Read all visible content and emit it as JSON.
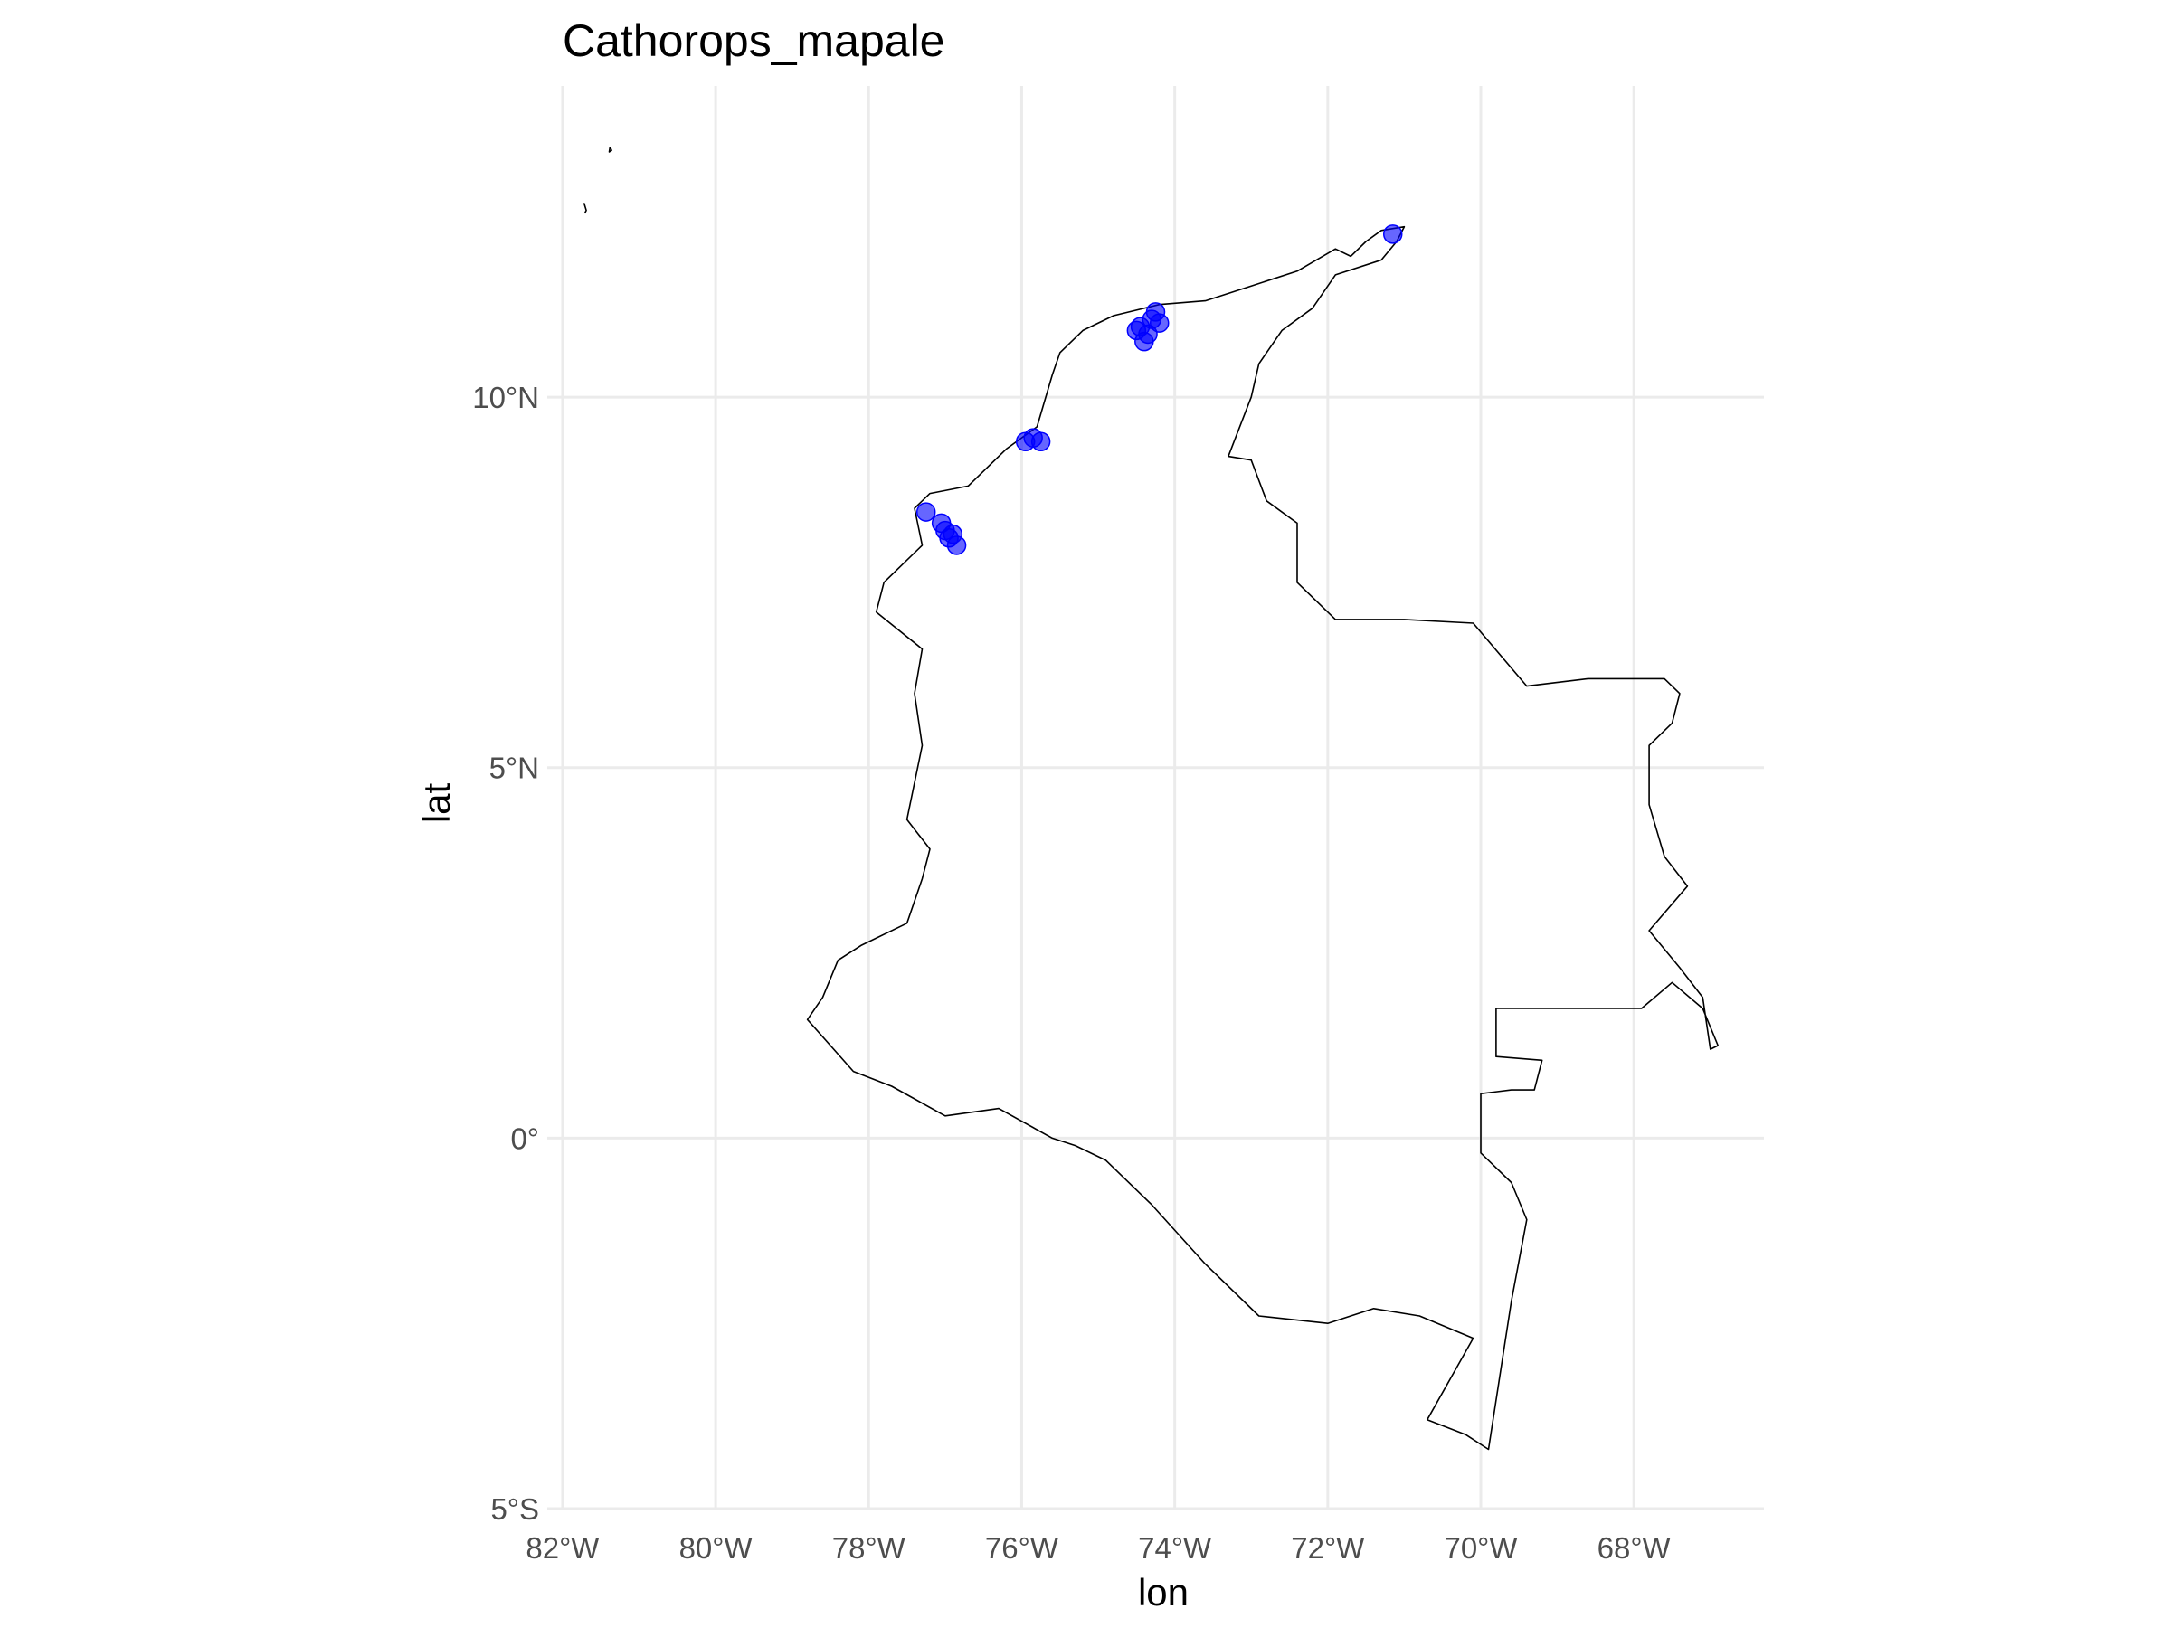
{
  "chart_data": {
    "type": "scatter",
    "title": "Cathorops_mapale",
    "xlabel": "lon",
    "ylabel": "lat",
    "xlim": [
      -82.2,
      -66.3
    ],
    "ylim": [
      -5.0,
      14.2
    ],
    "x_ticks": [
      {
        "value": -82,
        "label": "82°W"
      },
      {
        "value": -80,
        "label": "80°W"
      },
      {
        "value": -78,
        "label": "78°W"
      },
      {
        "value": -76,
        "label": "76°W"
      },
      {
        "value": -74,
        "label": "74°W"
      },
      {
        "value": -72,
        "label": "72°W"
      },
      {
        "value": -70,
        "label": "70°W"
      },
      {
        "value": -68,
        "label": "68°W"
      }
    ],
    "y_ticks": [
      {
        "value": 10,
        "label": "10°N"
      },
      {
        "value": 5,
        "label": "5°N"
      },
      {
        "value": 0,
        "label": "0°"
      },
      {
        "value": -5,
        "label": "5°S"
      }
    ],
    "grid": true,
    "point_color": "#0000ff",
    "outline_color": "#000000",
    "country_outline": [
      [
        -71.7,
        11.9
      ],
      [
        -71.5,
        12.1
      ],
      [
        -71.3,
        12.25
      ],
      [
        -71.0,
        12.3
      ],
      [
        -71.1,
        12.1
      ],
      [
        -71.3,
        11.85
      ],
      [
        -71.9,
        11.65
      ],
      [
        -72.2,
        11.2
      ],
      [
        -72.6,
        10.9
      ],
      [
        -72.9,
        10.45
      ],
      [
        -73.0,
        10.0
      ],
      [
        -73.3,
        9.2
      ],
      [
        -73.0,
        9.15
      ],
      [
        -72.8,
        8.6
      ],
      [
        -72.4,
        8.3
      ],
      [
        -72.4,
        7.5
      ],
      [
        -71.9,
        7.0
      ],
      [
        -71.0,
        7.0
      ],
      [
        -70.1,
        6.95
      ],
      [
        -69.4,
        6.1
      ],
      [
        -68.6,
        6.2
      ],
      [
        -67.6,
        6.2
      ],
      [
        -67.4,
        6.0
      ],
      [
        -67.5,
        5.6
      ],
      [
        -67.8,
        5.3
      ],
      [
        -67.8,
        4.5
      ],
      [
        -67.6,
        3.8
      ],
      [
        -67.3,
        3.4
      ],
      [
        -67.8,
        2.8
      ],
      [
        -67.4,
        2.3
      ],
      [
        -67.1,
        1.9
      ],
      [
        -67.0,
        1.2
      ],
      [
        -66.9,
        1.25
      ],
      [
        -67.1,
        1.75
      ],
      [
        -67.5,
        2.1
      ],
      [
        -67.9,
        1.75
      ],
      [
        -69.8,
        1.75
      ],
      [
        -69.8,
        1.1
      ],
      [
        -69.2,
        1.05
      ],
      [
        -69.3,
        0.65
      ],
      [
        -69.6,
        0.65
      ],
      [
        -70.0,
        0.6
      ],
      [
        -70.0,
        -0.2
      ],
      [
        -69.6,
        -0.6
      ],
      [
        -69.4,
        -1.1
      ],
      [
        -69.6,
        -2.2
      ],
      [
        -69.9,
        -4.2
      ],
      [
        -70.2,
        -4.0
      ],
      [
        -70.7,
        -3.8
      ],
      [
        -70.1,
        -2.7
      ],
      [
        -70.8,
        -2.4
      ],
      [
        -71.4,
        -2.3
      ],
      [
        -72.0,
        -2.5
      ],
      [
        -72.9,
        -2.4
      ],
      [
        -73.6,
        -1.7
      ],
      [
        -74.3,
        -0.9
      ],
      [
        -74.9,
        -0.3
      ],
      [
        -75.3,
        -0.1
      ],
      [
        -75.6,
        0.0
      ],
      [
        -76.3,
        0.4
      ],
      [
        -77.0,
        0.3
      ],
      [
        -77.7,
        0.7
      ],
      [
        -78.2,
        0.9
      ],
      [
        -78.8,
        1.6
      ],
      [
        -78.6,
        1.9
      ],
      [
        -78.4,
        2.4
      ],
      [
        -78.1,
        2.6
      ],
      [
        -77.5,
        2.9
      ],
      [
        -77.3,
        3.5
      ],
      [
        -77.2,
        3.9
      ],
      [
        -77.5,
        4.3
      ],
      [
        -77.3,
        5.3
      ],
      [
        -77.4,
        6.0
      ],
      [
        -77.3,
        6.6
      ],
      [
        -77.9,
        7.1
      ],
      [
        -77.8,
        7.5
      ],
      [
        -77.3,
        8.0
      ],
      [
        -77.4,
        8.5
      ],
      [
        -77.2,
        8.7
      ],
      [
        -76.7,
        8.8
      ],
      [
        -76.2,
        9.3
      ],
      [
        -75.8,
        9.6
      ],
      [
        -75.6,
        10.3
      ],
      [
        -75.5,
        10.6
      ],
      [
        -75.2,
        10.9
      ],
      [
        -74.8,
        11.1
      ],
      [
        -74.2,
        11.25
      ],
      [
        -73.6,
        11.3
      ],
      [
        -73.0,
        11.5
      ],
      [
        -72.4,
        11.7
      ],
      [
        -71.9,
        12.0
      ],
      [
        -71.7,
        11.9
      ]
    ],
    "island_outlines": [
      [
        [
          -81.72,
          12.62
        ],
        [
          -81.69,
          12.52
        ],
        [
          -81.71,
          12.48
        ]
      ],
      [
        [
          -81.38,
          13.38
        ],
        [
          -81.36,
          13.33
        ],
        [
          -81.39,
          13.31
        ],
        [
          -81.38,
          13.38
        ]
      ]
    ],
    "points": [
      {
        "lon": -71.15,
        "lat": 12.2
      },
      {
        "lon": -74.45,
        "lat": 10.95
      },
      {
        "lon": -74.3,
        "lat": 11.05
      },
      {
        "lon": -74.35,
        "lat": 10.85
      },
      {
        "lon": -74.2,
        "lat": 11.0
      },
      {
        "lon": -74.5,
        "lat": 10.9
      },
      {
        "lon": -74.25,
        "lat": 11.15
      },
      {
        "lon": -74.4,
        "lat": 10.75
      },
      {
        "lon": -75.95,
        "lat": 9.4
      },
      {
        "lon": -75.85,
        "lat": 9.45
      },
      {
        "lon": -75.75,
        "lat": 9.4
      },
      {
        "lon": -77.25,
        "lat": 8.45
      },
      {
        "lon": -77.05,
        "lat": 8.3
      },
      {
        "lon": -77.0,
        "lat": 8.2
      },
      {
        "lon": -76.95,
        "lat": 8.1
      },
      {
        "lon": -76.85,
        "lat": 8.0
      },
      {
        "lon": -76.9,
        "lat": 8.15
      }
    ]
  }
}
